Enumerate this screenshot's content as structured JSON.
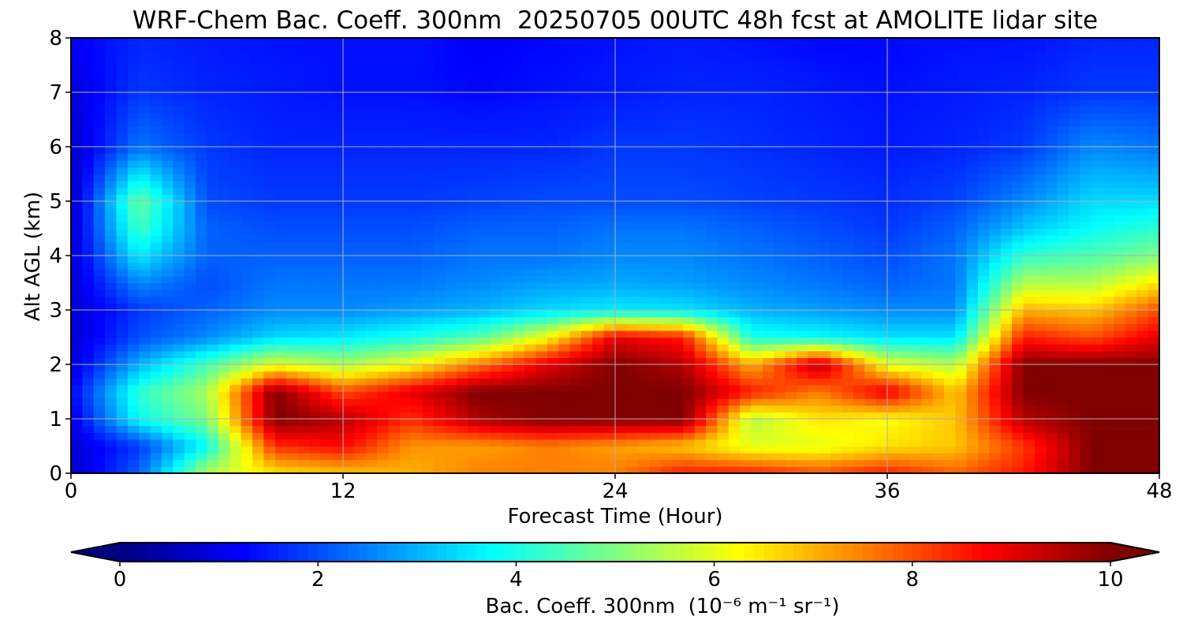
{
  "chart_data": {
    "type": "heatmap",
    "title": "WRF-Chem Bac. Coeff. 300nm  20250705 00UTC 48h fcst at AMOLITE lidar site",
    "xlabel": "Forecast Time (Hour)",
    "ylabel": "Alt AGL (km)",
    "xlim": [
      0,
      48
    ],
    "ylim": [
      0,
      8
    ],
    "x_ticks": [
      0,
      12,
      24,
      36,
      48
    ],
    "y_ticks": [
      0,
      1,
      2,
      3,
      4,
      5,
      6,
      7,
      8
    ],
    "grid": true,
    "colormap": "jet",
    "colorbar": {
      "label": "Bac. Coeff. 300nm  (10⁻⁶ m⁻¹ sr⁻¹)",
      "range": [
        0,
        10
      ],
      "ticks": [
        0,
        2,
        4,
        6,
        8,
        10
      ],
      "extend": "both",
      "orientation": "horizontal"
    },
    "x": [
      0,
      3,
      6,
      9,
      12,
      15,
      18,
      21,
      24,
      27,
      30,
      33,
      36,
      39,
      42,
      45,
      48
    ],
    "y": [
      0,
      0.5,
      1,
      1.5,
      2,
      2.5,
      3,
      3.5,
      4,
      4.5,
      5,
      6,
      7,
      8
    ],
    "z": [
      [
        0.7,
        2.2,
        5.5,
        6.5,
        6.8,
        7.0,
        7.5,
        7.5,
        7.5,
        8.5,
        8.5,
        8.0,
        8.5,
        7.8,
        8.5,
        10.0,
        10.0
      ],
      [
        0.8,
        1.8,
        3.8,
        8.3,
        8.7,
        7.3,
        7.2,
        7.5,
        7.2,
        6.8,
        6.0,
        6.0,
        6.5,
        6.8,
        8.2,
        10.0,
        10.0
      ],
      [
        1.0,
        3.8,
        5.0,
        10.0,
        9.5,
        8.3,
        9.6,
        10.0,
        10.0,
        10.0,
        5.5,
        6.5,
        6.2,
        6.8,
        9.5,
        10.0,
        10.0
      ],
      [
        1.2,
        4.2,
        5.4,
        10.0,
        8.0,
        9.0,
        10.0,
        10.0,
        10.0,
        10.0,
        8.5,
        7.5,
        9.0,
        6.8,
        10.0,
        10.0,
        10.0
      ],
      [
        0.9,
        3.0,
        4.4,
        6.0,
        5.4,
        6.2,
        7.6,
        9.0,
        10.0,
        9.5,
        7.0,
        9.5,
        6.0,
        5.5,
        10.0,
        10.0,
        10.0
      ],
      [
        0.8,
        2.0,
        2.6,
        3.4,
        3.6,
        4.0,
        4.6,
        6.2,
        9.0,
        8.5,
        4.0,
        3.8,
        3.5,
        3.5,
        8.5,
        8.0,
        9.0
      ],
      [
        0.8,
        1.8,
        2.2,
        2.6,
        2.6,
        2.8,
        3.0,
        3.4,
        3.6,
        3.5,
        3.0,
        2.8,
        2.6,
        2.6,
        7.0,
        6.8,
        8.0
      ],
      [
        0.8,
        2.6,
        2.0,
        2.4,
        2.4,
        2.4,
        2.6,
        2.8,
        2.9,
        2.8,
        2.6,
        2.4,
        2.2,
        2.4,
        5.5,
        5.5,
        6.5
      ],
      [
        0.8,
        3.6,
        2.2,
        2.2,
        2.2,
        2.2,
        2.4,
        2.4,
        2.6,
        2.6,
        2.4,
        2.2,
        2.0,
        2.4,
        4.2,
        4.5,
        5.0
      ],
      [
        0.7,
        4.4,
        2.2,
        2.0,
        2.0,
        2.0,
        2.2,
        2.2,
        2.4,
        2.4,
        2.2,
        2.0,
        1.8,
        2.2,
        3.2,
        3.8,
        4.2
      ],
      [
        0.6,
        4.8,
        2.0,
        1.8,
        1.8,
        1.8,
        1.9,
        2.0,
        2.0,
        2.0,
        1.9,
        1.8,
        1.7,
        1.9,
        2.6,
        3.4,
        3.4
      ],
      [
        0.7,
        2.4,
        1.8,
        1.6,
        1.6,
        1.6,
        1.6,
        1.6,
        1.8,
        1.8,
        1.7,
        1.6,
        1.5,
        1.6,
        1.8,
        2.6,
        2.4
      ],
      [
        0.9,
        1.8,
        1.6,
        1.5,
        1.4,
        1.4,
        1.3,
        1.4,
        1.5,
        1.6,
        1.6,
        1.5,
        1.4,
        1.5,
        1.6,
        1.8,
        1.8
      ],
      [
        1.2,
        1.6,
        1.5,
        1.4,
        1.4,
        1.4,
        1.2,
        1.3,
        1.4,
        1.5,
        1.4,
        1.3,
        1.3,
        1.4,
        1.4,
        1.6,
        1.6
      ]
    ]
  }
}
